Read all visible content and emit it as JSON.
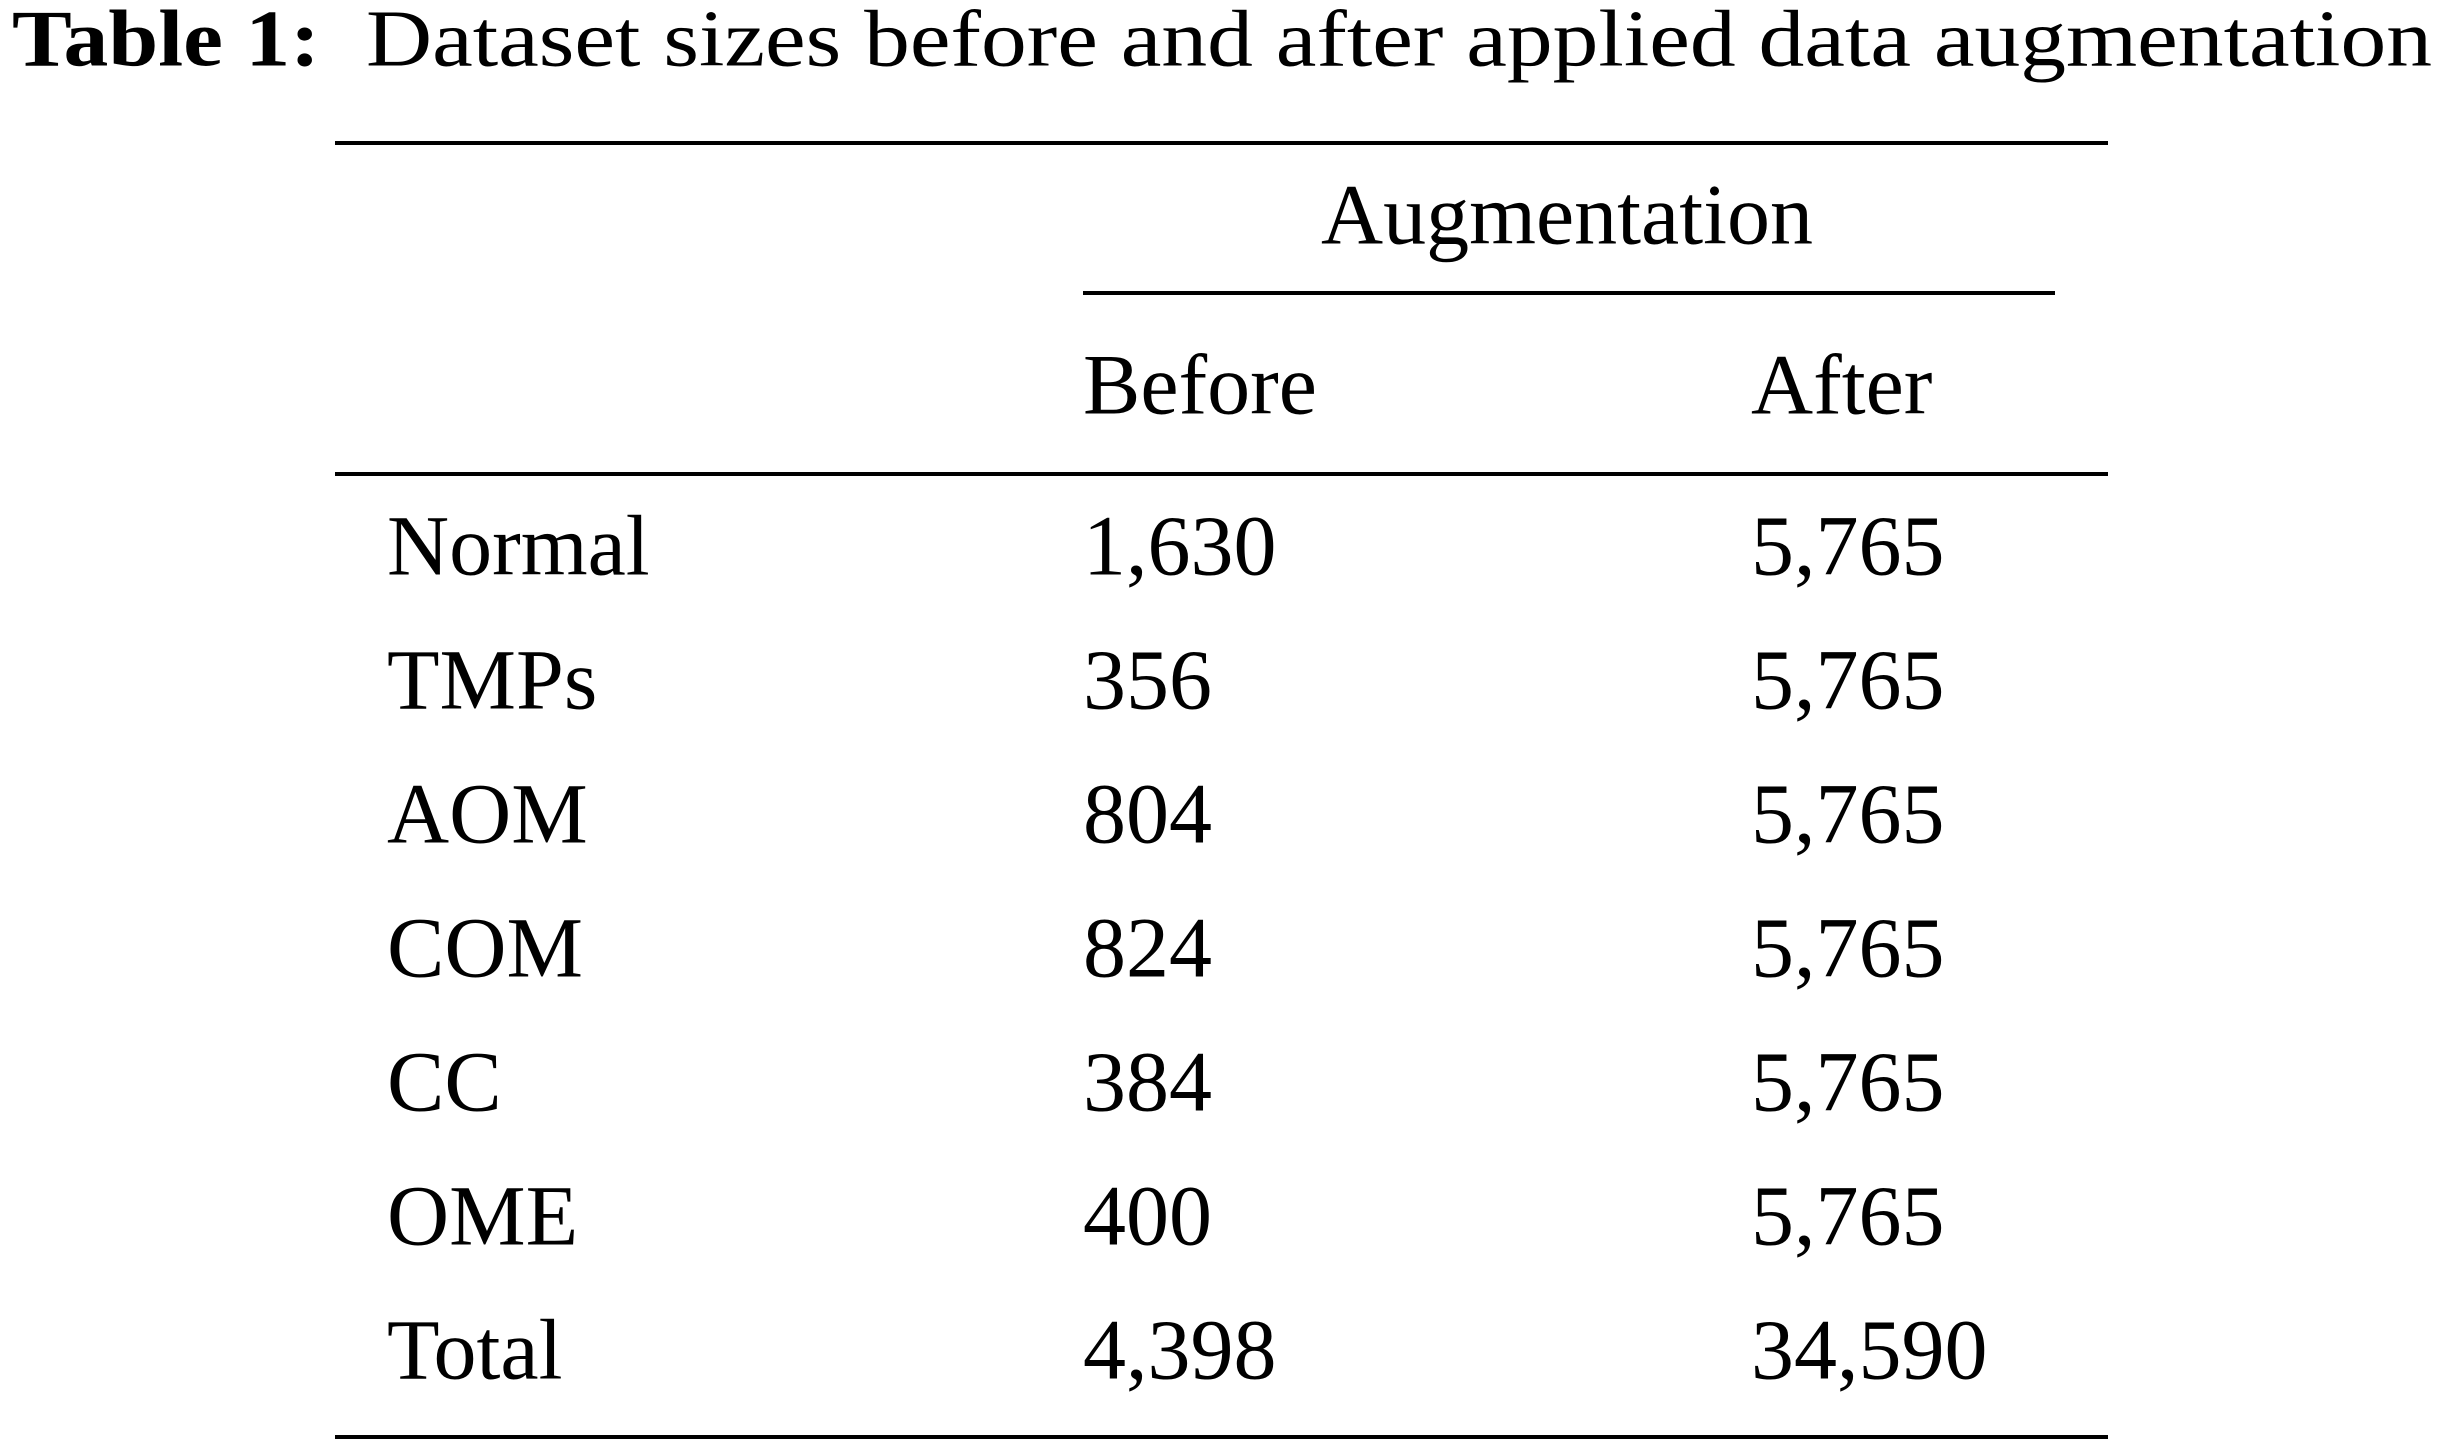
{
  "caption": {
    "label": "Table 1:",
    "title": "Dataset sizes before and after applied data augmentation"
  },
  "table": {
    "group_header": "Augmentation",
    "columns": [
      "Before",
      "After"
    ],
    "rows": [
      [
        "Normal",
        "1,630",
        "5,765"
      ],
      [
        "TMPs",
        "356",
        "5,765"
      ],
      [
        "AOM",
        "804",
        "5,765"
      ],
      [
        "COM",
        "824",
        "5,765"
      ],
      [
        "CC",
        "384",
        "5,765"
      ],
      [
        "OME",
        "400",
        "5,765"
      ],
      [
        "Total",
        "4,398",
        "34,590"
      ]
    ]
  }
}
